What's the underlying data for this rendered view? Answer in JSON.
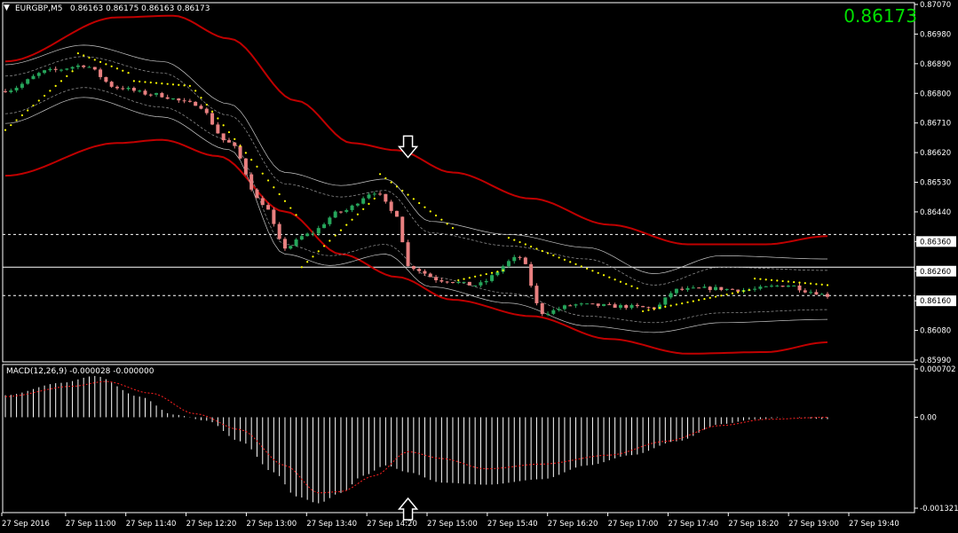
{
  "window": {
    "menu_icon": "triangle-down-icon",
    "symbol_label": "EURGBP,M5",
    "ohlc_text": "0.86163 0.86175 0.86163 0.86173",
    "current_price": "0.86173"
  },
  "colors": {
    "background": "#000000",
    "bull_candle": "#26a65b",
    "bear_candle": "#e88080",
    "outer_band": "#c00000",
    "inner_band": "#c8c8c8",
    "dashed_band": "#9a9a9a",
    "psar": "#ffff00",
    "macd_histogram": "#ffffff",
    "macd_signal": "#ff2020",
    "current_price": "#00e000",
    "axis_text": "#ffffff"
  },
  "price_axis": {
    "min": 0.8597,
    "max": 0.8707,
    "ticks": [
      "0.87070",
      "0.86980",
      "0.86890",
      "0.86800",
      "0.86710",
      "0.86620",
      "0.86530",
      "0.86440",
      "0.86360",
      "0.86260",
      "0.86160",
      "0.86080",
      "0.85990"
    ],
    "highlighted_ticks": [
      "0.86360",
      "0.86260",
      "0.86160"
    ],
    "current_tag": "0.86173"
  },
  "horizontal_lines": [
    {
      "price": 0.8636,
      "style": "dashed"
    },
    {
      "price": 0.8626,
      "style": "solid"
    },
    {
      "price": 0.86173,
      "style": "dashed"
    }
  ],
  "annotations": [
    {
      "type": "arrow-down",
      "label": "down-arrow-icon",
      "time_index": 72,
      "price": 0.86618
    },
    {
      "type": "arrow-up",
      "label": "up-arrow-icon",
      "time_index": 72,
      "macd": -0.00105
    }
  ],
  "macd": {
    "label": "MACD(12,26,9) -0.000028 -0.000000",
    "min": -0.001321,
    "max": 0.000702,
    "ticks": [
      "0.000702",
      "0.00",
      "-0.001321"
    ]
  },
  "time_axis": {
    "labels": [
      "27 Sep 2016",
      "27 Sep 11:00",
      "27 Sep 11:40",
      "27 Sep 12:20",
      "27 Sep 13:00",
      "27 Sep 13:40",
      "27 Sep 14:20",
      "27 Sep 15:00",
      "27 Sep 15:40",
      "27 Sep 16:20",
      "27 Sep 17:00",
      "27 Sep 17:40",
      "27 Sep 18:20",
      "27 Sep 19:00",
      "27 Sep 19:40"
    ]
  },
  "chart_data": {
    "type": "candlestick",
    "symbol": "EURGBP",
    "timeframe": "M5",
    "candle_count": 148,
    "close_anchors": [
      [
        0,
        0.86802
      ],
      [
        8,
        0.86862
      ],
      [
        14,
        0.86878
      ],
      [
        20,
        0.8681
      ],
      [
        26,
        0.8679
      ],
      [
        34,
        0.8676
      ],
      [
        40,
        0.8664
      ],
      [
        46,
        0.86455
      ],
      [
        50,
        0.8632
      ],
      [
        54,
        0.8636
      ],
      [
        60,
        0.8643
      ],
      [
        66,
        0.8649
      ],
      [
        70,
        0.8642
      ],
      [
        72,
        0.86262
      ],
      [
        78,
        0.8622
      ],
      [
        84,
        0.86205
      ],
      [
        92,
        0.8629
      ],
      [
        96,
        0.8612
      ],
      [
        102,
        0.86145
      ],
      [
        110,
        0.8614
      ],
      [
        116,
        0.86135
      ],
      [
        120,
        0.8619
      ],
      [
        126,
        0.86195
      ],
      [
        132,
        0.8619
      ],
      [
        140,
        0.86205
      ],
      [
        144,
        0.86185
      ],
      [
        147,
        0.86173
      ]
    ],
    "outer_upper_band": [
      [
        0,
        0.8689
      ],
      [
        20,
        0.87025
      ],
      [
        30,
        0.8703
      ],
      [
        40,
        0.8696
      ],
      [
        52,
        0.8677
      ],
      [
        62,
        0.8664
      ],
      [
        70,
        0.86618
      ],
      [
        80,
        0.8655
      ],
      [
        94,
        0.8647
      ],
      [
        108,
        0.8639
      ],
      [
        122,
        0.8633
      ],
      [
        136,
        0.8633
      ],
      [
        147,
        0.86355
      ]
    ],
    "outer_lower_band": [
      [
        0,
        0.8654
      ],
      [
        20,
        0.8664
      ],
      [
        28,
        0.8665
      ],
      [
        38,
        0.866
      ],
      [
        50,
        0.8643
      ],
      [
        60,
        0.863
      ],
      [
        70,
        0.8623
      ],
      [
        80,
        0.8616
      ],
      [
        94,
        0.8611
      ],
      [
        108,
        0.8604
      ],
      [
        122,
        0.85995
      ],
      [
        136,
        0.86
      ],
      [
        147,
        0.8603
      ]
    ],
    "inner_upper_band": [
      [
        0,
        0.8688
      ],
      [
        14,
        0.8694
      ],
      [
        28,
        0.8689
      ],
      [
        40,
        0.8676
      ],
      [
        50,
        0.8655
      ],
      [
        60,
        0.8651
      ],
      [
        68,
        0.8653
      ],
      [
        76,
        0.864
      ],
      [
        90,
        0.8636
      ],
      [
        104,
        0.8632
      ],
      [
        116,
        0.8624
      ],
      [
        128,
        0.86295
      ],
      [
        147,
        0.86285
      ]
    ],
    "inner_lower_band": [
      [
        0,
        0.867
      ],
      [
        14,
        0.8678
      ],
      [
        28,
        0.8672
      ],
      [
        40,
        0.8662
      ],
      [
        50,
        0.863
      ],
      [
        58,
        0.86265
      ],
      [
        68,
        0.863
      ],
      [
        76,
        0.862
      ],
      [
        90,
        0.8615
      ],
      [
        104,
        0.8608
      ],
      [
        116,
        0.8606
      ],
      [
        128,
        0.8609
      ],
      [
        147,
        0.861
      ]
    ],
    "psar": [
      {
        "from": 0,
        "to": 12,
        "start": 0.8668,
        "end": 0.8686
      },
      {
        "from": 13,
        "to": 22,
        "start": 0.86915,
        "end": 0.86855
      },
      {
        "from": 23,
        "to": 33,
        "start": 0.8683,
        "end": 0.86815
      },
      {
        "from": 34,
        "to": 52,
        "start": 0.868,
        "end": 0.8642
      },
      {
        "from": 53,
        "to": 66,
        "start": 0.8626,
        "end": 0.8647
      },
      {
        "from": 67,
        "to": 80,
        "start": 0.86545,
        "end": 0.8638
      },
      {
        "from": 81,
        "to": 89,
        "start": 0.8622,
        "end": 0.8625
      },
      {
        "from": 90,
        "to": 113,
        "start": 0.8635,
        "end": 0.86195
      },
      {
        "from": 114,
        "to": 133,
        "start": 0.86125,
        "end": 0.8619
      },
      {
        "from": 134,
        "to": 147,
        "start": 0.86225,
        "end": 0.86205
      }
    ],
    "macd_histogram_anchors": [
      [
        0,
        0.00032
      ],
      [
        10,
        0.0005
      ],
      [
        16,
        0.0006
      ],
      [
        24,
        0.0003
      ],
      [
        30,
        4e-05
      ],
      [
        36,
        -5e-05
      ],
      [
        42,
        -0.00035
      ],
      [
        48,
        -0.0008
      ],
      [
        52,
        -0.00115
      ],
      [
        56,
        -0.00125
      ],
      [
        60,
        -0.0011
      ],
      [
        64,
        -0.00085
      ],
      [
        68,
        -0.0007
      ],
      [
        72,
        -0.0008
      ],
      [
        78,
        -0.00095
      ],
      [
        86,
        -0.00098
      ],
      [
        96,
        -0.0009
      ],
      [
        104,
        -0.0007
      ],
      [
        112,
        -0.00055
      ],
      [
        120,
        -0.00035
      ],
      [
        128,
        -0.0001
      ],
      [
        134,
        -3e-05
      ],
      [
        140,
        0.0
      ],
      [
        147,
        -2.8e-05
      ]
    ],
    "macd_signal_anchors": [
      [
        0,
        0.0003
      ],
      [
        12,
        0.00045
      ],
      [
        18,
        0.00052
      ],
      [
        26,
        0.00035
      ],
      [
        34,
        5e-05
      ],
      [
        42,
        -0.00018
      ],
      [
        50,
        -0.0007
      ],
      [
        56,
        -0.0011
      ],
      [
        60,
        -0.00108
      ],
      [
        66,
        -0.00085
      ],
      [
        72,
        -0.0005
      ],
      [
        78,
        -0.0006
      ],
      [
        86,
        -0.00075
      ],
      [
        96,
        -0.00068
      ],
      [
        108,
        -0.00055
      ],
      [
        118,
        -0.00035
      ],
      [
        128,
        -0.00012
      ],
      [
        136,
        -3e-05
      ],
      [
        147,
        0.0
      ]
    ]
  }
}
